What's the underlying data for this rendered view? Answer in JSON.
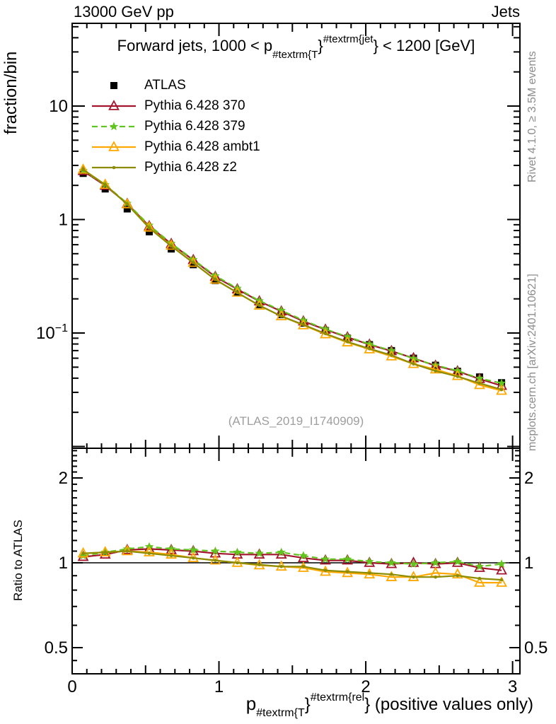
{
  "header": {
    "left": "13000 GeV pp",
    "right": "Jets"
  },
  "title": {
    "prefix": "Forward jets, 1000 < p",
    "sub": "#textrm{T",
    "brace": "}",
    "sup": "#textrm{jet",
    "suffix": "} < 1200 [GeV]"
  },
  "watermark": "(ATLAS_2019_I1740909)",
  "side_notes": {
    "top": "Rivet 4.1.0, ≥ 3.5M events",
    "bottom": "mcplots.cern.ch [arXiv:2401.10621]"
  },
  "main_panel": {
    "y_label": "fraction/bin",
    "y_ticks": [
      {
        "v": 10,
        "t": "10"
      },
      {
        "v": 1,
        "t": "1"
      },
      {
        "v": 0.1,
        "t": "10",
        "sup": "−1"
      }
    ]
  },
  "ratio_panel": {
    "y_label": "Ratio to ATLAS",
    "y_ticks": [
      {
        "v": 2,
        "t": "2"
      },
      {
        "v": 1,
        "t": "1"
      },
      {
        "v": 0.5,
        "t": "0.5"
      }
    ]
  },
  "x_axis": {
    "ticks": [
      {
        "v": 0,
        "t": "0"
      },
      {
        "v": 1,
        "t": "1"
      },
      {
        "v": 2,
        "t": "2"
      },
      {
        "v": 3,
        "t": "3"
      }
    ],
    "label": {
      "p": "p",
      "sub": "#textrm{T",
      "brace": "}",
      "sup": "#textrm{rel",
      "suffix": "} (positive values only)"
    }
  },
  "legend": {
    "items": [
      {
        "label": "ATLAS"
      },
      {
        "label": "Pythia 6.428 370"
      },
      {
        "label": "Pythia 6.428 379"
      },
      {
        "label": "Pythia 6.428 ambt1"
      },
      {
        "label": "Pythia 6.428 z2"
      }
    ]
  },
  "chart_data": {
    "type": "line",
    "title": "Forward jets, 1000 < pT^jet < 1200 [GeV]",
    "x_label": "pT^rel (positive values only)",
    "y_label_main": "fraction/bin",
    "y_label_ratio": "Ratio to ATLAS",
    "x_range": [
      0,
      3.05
    ],
    "main_y_log_range": [
      0.0096,
      53.6
    ],
    "ratio_y_log_range": [
      0.404,
      2.55
    ],
    "grid": false,
    "legend_position": "top-left-inside",
    "x": [
      0.075,
      0.225,
      0.375,
      0.525,
      0.675,
      0.825,
      0.975,
      1.125,
      1.275,
      1.425,
      1.575,
      1.725,
      1.875,
      2.025,
      2.175,
      2.325,
      2.475,
      2.625,
      2.775,
      2.925
    ],
    "series": [
      {
        "name": "ATLAS",
        "marker": "square",
        "color": "#000000",
        "line": "none",
        "values": [
          2.55,
          1.86,
          1.24,
          0.78,
          0.55,
          0.4,
          0.29,
          0.227,
          0.178,
          0.145,
          0.122,
          0.105,
          0.09,
          0.079,
          0.07,
          0.06,
          0.052,
          0.046,
          0.041,
          0.0365
        ]
      },
      {
        "name": "Pythia 6.428 370",
        "marker": "triangle-open",
        "color": "#a3142d",
        "line": "solid",
        "ratio": [
          1.05,
          1.07,
          1.11,
          1.12,
          1.11,
          1.1,
          1.08,
          1.07,
          1.07,
          1.07,
          1.04,
          1.02,
          1.02,
          1.0,
          0.99,
          1.0,
          0.99,
          1.0,
          0.96,
          0.94
        ]
      },
      {
        "name": "Pythia 6.428 379",
        "marker": "star",
        "color": "#62c41e",
        "line": "dashed",
        "ratio": [
          1.06,
          1.09,
          1.12,
          1.14,
          1.12,
          1.11,
          1.1,
          1.09,
          1.08,
          1.09,
          1.06,
          1.03,
          1.03,
          1.01,
          1.0,
          0.99,
          1.0,
          1.01,
          0.97,
          0.99
        ]
      },
      {
        "name": "Pythia 6.428 ambt1",
        "marker": "triangle-open",
        "color": "#ffa800",
        "line": "solid",
        "ratio": [
          1.08,
          1.09,
          1.1,
          1.09,
          1.07,
          1.04,
          1.02,
          1.0,
          0.98,
          0.97,
          0.96,
          0.93,
          0.92,
          0.91,
          0.89,
          0.89,
          0.92,
          0.91,
          0.85,
          0.85
        ]
      },
      {
        "name": "Pythia 6.428 z2",
        "marker": "dot",
        "color": "#8c8c00",
        "line": "solid",
        "ratio": [
          1.08,
          1.09,
          1.1,
          1.08,
          1.06,
          1.04,
          1.02,
          1.0,
          0.985,
          0.97,
          0.97,
          0.94,
          0.93,
          0.92,
          0.91,
          0.89,
          0.89,
          0.9,
          0.88,
          0.87
        ]
      }
    ]
  }
}
